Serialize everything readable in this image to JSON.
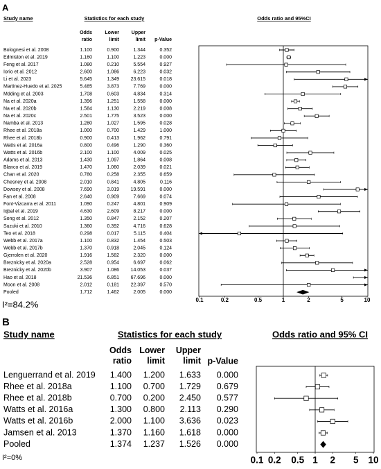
{
  "chart_data": [
    {
      "type": "forest",
      "panel": "A",
      "heading_name": "Study name",
      "heading_stats": "Statistics for each study",
      "heading_plot": "Odds ratio and 95%CI",
      "studies": [
        "Bolognesi et al. 2008",
        "Edmiston et al. 2019",
        "Feng et al. 2017",
        "Iorio et al. 2012",
        "Li et al. 2023",
        "Martinez-Huedo et al. 2025",
        "Mdding et al. 2003",
        "Na et al. 2020a",
        "Na et al. 2020b",
        "Na et al. 2020c",
        "Namba et al. 2013",
        "Rhee et al. 2018a",
        "Rhee et al. 2018b",
        "Watts et al. 2016a",
        "Watts et al. 2016b",
        "Adams et al. 2013",
        "Blanco et al. 2019",
        "Chan et al. 2020",
        "Chesney et al. 2008",
        "Dowsey et al. 2008",
        "Fan et al. 2008",
        "Font-Vizcarra et al. 2011",
        "Iqbal et al. 2019",
        "Song et al. 2012",
        "Suzuki et al. 2010",
        "Teo et al. 2018",
        "Webb et al. 2017a",
        "Webb et al. 2017b",
        "Gjerrolen et al. 2020",
        "Breznicky et al. 2020a",
        "Breznicky et al. 2020b",
        "Hao et al. 2018",
        "Moon et al. 2008",
        "Pooled"
      ],
      "series": [
        {
          "name": "Odds ratio",
          "values": [
            1.1,
            1.16,
            1.08,
            2.6,
            5.645,
            5.485,
            1.708,
            1.396,
            1.584,
            2.501,
            1.28,
            1,
            0.9,
            0.8,
            2.1,
            1.43,
            1.47,
            0.78,
            2.01,
            7.69,
            2.64,
            1.09,
            4.63,
            1.35,
            1.36,
            0.298,
            1.1,
            1.37,
            1.916,
            2.528,
            3.907,
            21.536,
            2.012,
            1.712
          ],
          "value_labels": [
            "1.100",
            "1.160",
            "1.080",
            "2.600",
            "5.645",
            "5.485",
            "1.708",
            "1.396",
            "1.584",
            "2.501",
            "1.280",
            "1.000",
            "0.900",
            "0.800",
            "2.100",
            "1.430",
            "1.470",
            "0.780",
            "2.010",
            "7.690",
            "2.640",
            "1.090",
            "4.630",
            "1.350",
            "1.360",
            "0.298",
            "1.100",
            "1.370",
            "1.916",
            "2.528",
            "3.907",
            "21.536",
            "2.012",
            "1.712"
          ]
        },
        {
          "name": "Lower limit",
          "values": [
            0.9,
            1.1,
            0.21,
            1.086,
            1.349,
            3.873,
            0.603,
            1.251,
            1.13,
            1.775,
            1.027,
            0.7,
            0.413,
            0.496,
            1.1,
            1.097,
            1.06,
            0.258,
            0.841,
            3.019,
            0.909,
            0.247,
            2.609,
            0.847,
            0.392,
            0.017,
            0.832,
            0.918,
            1.582,
            0.954,
            1.086,
            6.851,
            0.181,
            1.462
          ],
          "value_labels": [
            "0.900",
            "1.100",
            "0.210",
            "1.086",
            "1.349",
            "3.873",
            "0.603",
            "1.251",
            "1.130",
            "1.775",
            "1.027",
            "0.700",
            "0.413",
            "0.496",
            "1.100",
            "1.097",
            "1.060",
            "0.258",
            "0.841",
            "3.019",
            "0.909",
            "0.247",
            "2.609",
            "0.847",
            "0.392",
            "0.017",
            "0.832",
            "0.918",
            "1.582",
            "0.954",
            "1.086",
            "6.851",
            "0.181",
            "1.462"
          ]
        },
        {
          "name": "Upper limit",
          "values": [
            1.344,
            1.223,
            5.554,
            6.223,
            23.615,
            7.769,
            4.834,
            1.558,
            2.219,
            3.523,
            1.595,
            1.429,
            1.962,
            1.29,
            4.009,
            1.864,
            2.039,
            2.355,
            4.805,
            19.591,
            7.669,
            4.801,
            8.217,
            2.152,
            4.716,
            5.115,
            1.454,
            2.045,
            2.32,
            6.697,
            14.053,
            67.696,
            22.397,
            2.005
          ],
          "value_labels": [
            "1.344",
            "1.223",
            "5.554",
            "6.223",
            "23.615",
            "7.769",
            "4.834",
            "1.558",
            "2.219",
            "3.523",
            "1.595",
            "1.429",
            "1.962",
            "1.290",
            "4.009",
            "1.864",
            "2.039",
            "2.355",
            "4.805",
            "19.591",
            "7.669",
            "4.801",
            "8.217",
            "2.152",
            "4.716",
            "5.115",
            "1.454",
            "2.045",
            "2.320",
            "6.697",
            "14.053",
            "67.696",
            "22.397",
            "2.005"
          ]
        },
        {
          "name": "p-Value",
          "values": [
            0.352,
            0,
            0.927,
            0.032,
            0.018,
            0,
            0.314,
            0,
            0.008,
            0,
            0.028,
            1,
            0.791,
            0.36,
            0.025,
            0.008,
            0.021,
            0.659,
            0.116,
            0,
            0.074,
            0.909,
            0,
            0.207,
            0.628,
            0.404,
            0.503,
            0.124,
            0,
            0.062,
            0.037,
            0,
            0.57,
            0
          ],
          "value_labels": [
            "0.352",
            "0.000",
            "0.927",
            "0.032",
            "0.018",
            "0.000",
            "0.314",
            "0.000",
            "0.008",
            "0.000",
            "0.028",
            "1.000",
            "0.791",
            "0.360",
            "0.025",
            "0.008",
            "0.021",
            "0.659",
            "0.116",
            "0.000",
            "0.074",
            "0.909",
            "0.000",
            "0.207",
            "0.628",
            "0.404",
            "0.503",
            "0.124",
            "0.000",
            "0.062",
            "0.037",
            "0.000",
            "0.570",
            "0.000"
          ]
        }
      ],
      "xscale": "log",
      "xlim": [
        0.1,
        10
      ],
      "xticks": [
        0.1,
        0.2,
        0.5,
        1,
        2,
        5,
        10
      ],
      "heterogeneity": "I²=84.2%"
    },
    {
      "type": "forest",
      "panel": "B",
      "heading_name": "Study name",
      "heading_stats": "Statistics for each study",
      "heading_plot": "Odds ratio and 95% CI",
      "studies": [
        "Lenguerrand et al. 2019",
        "Rhee et al. 2018a",
        "Rhee et al. 2018b",
        "Watts et al. 2016a",
        "Watts et al. 2016b",
        "Jamsen et al. 2013",
        "Pooled"
      ],
      "series": [
        {
          "name": "Odds ratio",
          "values": [
            1.4,
            1.1,
            0.7,
            1.3,
            2,
            1.37,
            1.374
          ],
          "value_labels": [
            "1.400",
            "1.100",
            "0.700",
            "1.300",
            "2.000",
            "1.370",
            "1.374"
          ]
        },
        {
          "name": "Lower limit",
          "values": [
            1.2,
            0.7,
            0.2,
            0.8,
            1.1,
            1.16,
            1.237
          ],
          "value_labels": [
            "1.200",
            "0.700",
            "0.200",
            "0.800",
            "1.100",
            "1.160",
            "1.237"
          ]
        },
        {
          "name": "Upper limit",
          "values": [
            1.633,
            1.729,
            2.45,
            2.113,
            3.636,
            1.618,
            1.526
          ],
          "value_labels": [
            "1.633",
            "1.729",
            "2.450",
            "2.113",
            "3.636",
            "1.618",
            "1.526"
          ]
        },
        {
          "name": "p-Value",
          "values": [
            0,
            0.679,
            0.577,
            0.29,
            0.023,
            0,
            0
          ],
          "value_labels": [
            "0.000",
            "0.679",
            "0.577",
            "0.290",
            "0.023",
            "0.000",
            "0.000"
          ]
        }
      ],
      "xscale": "log",
      "xlim": [
        0.1,
        10
      ],
      "xticks": [
        0.1,
        0.2,
        0.5,
        1,
        2,
        5,
        10
      ],
      "heterogeneity": "I²=0%"
    }
  ]
}
